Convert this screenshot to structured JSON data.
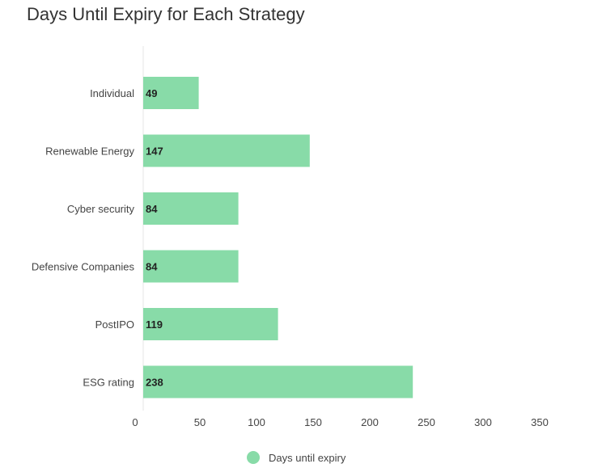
{
  "chart_data": {
    "type": "bar",
    "orientation": "horizontal",
    "title": "Days Until Expiry for Each Strategy",
    "categories": [
      "Individual",
      "Renewable Energy",
      "Cyber security",
      "Defensive Companies",
      "PostIPO",
      "ESG rating"
    ],
    "series": [
      {
        "name": "Days until expiry",
        "values": [
          49,
          147,
          84,
          84,
          119,
          238
        ],
        "color": "#88dba8"
      }
    ],
    "xlim": [
      0,
      350
    ],
    "xticks": [
      0,
      50,
      100,
      150,
      200,
      250,
      300,
      350
    ],
    "grid": false,
    "legend_position": "bottom"
  }
}
